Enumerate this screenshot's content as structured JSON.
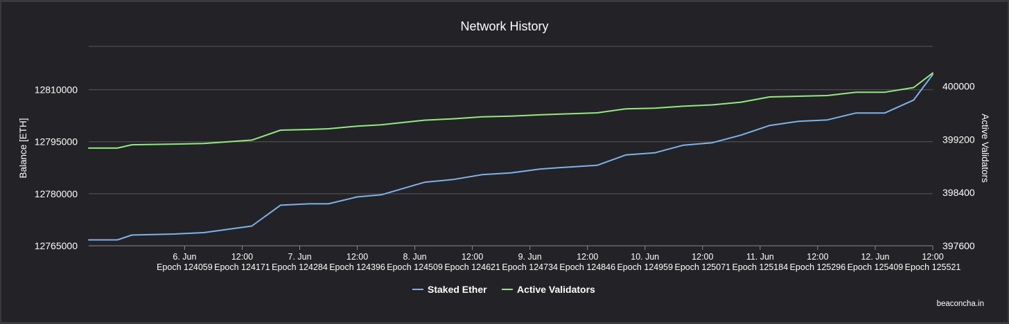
{
  "chart_data": {
    "type": "line",
    "title": "Network History",
    "ylabel_left": "Balance [ETH]",
    "ylabel_right": "Active Validators",
    "ylim_left": [
      12765000,
      12822500
    ],
    "ylim_right": [
      397600,
      400600
    ],
    "yticks_left": [
      "12765000",
      "12780000",
      "12795000",
      "12810000"
    ],
    "yticks_right": [
      "397600",
      "398400",
      "399200",
      "400000"
    ],
    "xticks": [
      {
        "date": "6. Jun",
        "epoch": "Epoch 124059"
      },
      {
        "date": "12:00",
        "epoch": "Epoch 124171"
      },
      {
        "date": "7. Jun",
        "epoch": "Epoch 124284"
      },
      {
        "date": "12:00",
        "epoch": "Epoch 124396"
      },
      {
        "date": "8. Jun",
        "epoch": "Epoch 124509"
      },
      {
        "date": "12:00",
        "epoch": "Epoch 124621"
      },
      {
        "date": "9. Jun",
        "epoch": "Epoch 124734"
      },
      {
        "date": "12:00",
        "epoch": "Epoch 124846"
      },
      {
        "date": "10. Jun",
        "epoch": "Epoch 124959"
      },
      {
        "date": "12:00",
        "epoch": "Epoch 125071"
      },
      {
        "date": "11. Jun",
        "epoch": "Epoch 125184"
      },
      {
        "date": "12:00",
        "epoch": "Epoch 125296"
      },
      {
        "date": "12. Jun",
        "epoch": "Epoch 125409"
      },
      {
        "date": "12:00",
        "epoch": "Epoch 125521"
      }
    ],
    "x_hours_range": [
      -20,
      156
    ],
    "series": [
      {
        "name": "Staked Ether",
        "axis": "left",
        "color": "#7cb5ec",
        "hours": [
          -20,
          -14,
          -11,
          -2,
          4,
          14,
          20,
          26,
          30,
          36,
          41,
          50,
          56,
          62,
          68,
          74,
          78,
          86,
          92,
          98,
          104,
          110,
          116,
          122,
          128,
          134,
          140,
          146,
          152,
          156
        ],
        "values": [
          12766700,
          12766700,
          12768100,
          12768400,
          12768800,
          12770700,
          12776700,
          12777100,
          12777100,
          12779100,
          12779700,
          12783300,
          12784100,
          12785500,
          12786000,
          12787100,
          12787500,
          12788200,
          12791200,
          12791800,
          12794000,
          12794700,
          12796900,
          12799700,
          12800900,
          12801300,
          12803300,
          12803300,
          12807000,
          12814400
        ]
      },
      {
        "name": "Active Validators",
        "axis": "right",
        "color": "#90ed7d",
        "hours": [
          -20,
          -14,
          -11,
          -2,
          4,
          14,
          20,
          26,
          30,
          36,
          41,
          50,
          56,
          62,
          68,
          74,
          78,
          86,
          92,
          98,
          104,
          110,
          116,
          122,
          128,
          134,
          140,
          146,
          152,
          156
        ],
        "values": [
          399070,
          399070,
          399120,
          399130,
          399140,
          399190,
          399340,
          399350,
          399360,
          399400,
          399420,
          399490,
          399510,
          399540,
          399550,
          399570,
          399580,
          399600,
          399660,
          399670,
          399700,
          399720,
          399760,
          399840,
          399850,
          399860,
          399910,
          399910,
          399980,
          400200
        ]
      }
    ],
    "grid": true,
    "legend_position": "bottom-center",
    "credit": "beaconcha.in"
  }
}
